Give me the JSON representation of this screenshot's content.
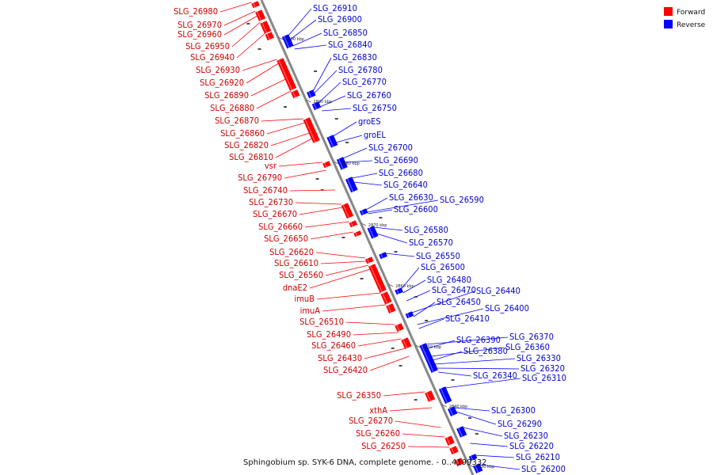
{
  "caption": "Sphingobium sp. SYK-6 DNA, complete genome. - 0..4199332",
  "legend": [
    {
      "label": "Forward",
      "color": "#ff0000"
    },
    {
      "label": "Reverse",
      "color": "#0000ff"
    }
  ],
  "ticks": [
    "2900 kbp",
    "2890 kbp",
    "2880 kbp",
    "2870 kbp",
    "2860 kbp",
    "2850 kbp",
    "2840 kbp",
    "2830 kbp"
  ],
  "forward_genes": [
    "SLG_26980",
    "SLG_26970",
    "SLG_26960",
    "SLG_26950",
    "SLG_26940",
    "SLG_26930",
    "SLG_26920",
    "SLG_26890",
    "SLG_26880",
    "SLG_26870",
    "SLG_26860",
    "SLG_26820",
    "SLG_26810",
    "vsr",
    "SLG_26790",
    "SLG_26740",
    "SLG_26730",
    "SLG_26670",
    "SLG_26660",
    "SLG_26650",
    "SLG_26620",
    "SLG_26610",
    "SLG_26560",
    "dnaE2",
    "imuB",
    "imuA",
    "SLG_26510",
    "SLG_26490",
    "SLG_26460",
    "SLG_26430",
    "SLG_26420",
    "SLG_26350",
    "xthA",
    "SLG_26270",
    "SLG_26260",
    "SLG_26250"
  ],
  "reverse_genes": [
    "SLG_26910",
    "SLG_26900",
    "SLG_26850",
    "SLG_26840",
    "SLG_26830",
    "SLG_26780",
    "SLG_26770",
    "SLG_26760",
    "SLG_26750",
    "groES",
    "groEL",
    "SLG_26700",
    "SLG_26690",
    "SLG_26680",
    "SLG_26640",
    "SLG_26630",
    "SLG_26590",
    "SLG_26600",
    "SLG_26580",
    "SLG_26570",
    "SLG_26550",
    "SLG_26500",
    "SLG_26480",
    "SLG_26470",
    "SLG_26440",
    "SLG_26450",
    "SLG_26400",
    "SLG_26410",
    "SLG_26370",
    "SLG_26390",
    "SLG_26360",
    "SLG_26380",
    "SLG_26330",
    "SLG_26320",
    "SLG_26340",
    "SLG_26310",
    "SLG_26300",
    "SLG_26290",
    "SLG_26230",
    "SLG_26220",
    "SLG_26210",
    "SLG_26200"
  ]
}
